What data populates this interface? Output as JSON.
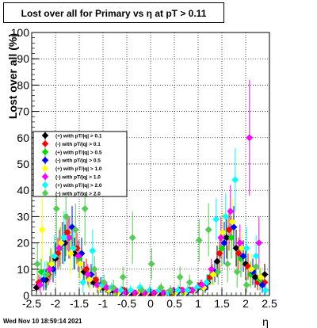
{
  "chart_data": {
    "type": "scatter",
    "title": "Lost over all for Primary vs    η at pT > 0.11",
    "xlabel": "η",
    "ylabel": "Lost over all (%)",
    "xlim": [
      -2.5,
      2.5
    ],
    "ylim": [
      0,
      100
    ],
    "x_ticks": [
      "-2.5",
      "-2",
      "-1.5",
      "-1",
      "-0.5",
      "0",
      "0.5",
      "1",
      "1.5",
      "2",
      "2.5"
    ],
    "y_ticks": [
      "0",
      "10",
      "20",
      "30",
      "40",
      "50",
      "60",
      "70",
      "80",
      "90",
      "100"
    ],
    "grid": true,
    "legend_position": "left",
    "series": [
      {
        "name": "(+) with pT/|q| > 0.1",
        "color": "#000000",
        "x": [
          -2.4,
          -2.2,
          -2.0,
          -1.8,
          -1.6,
          -1.4,
          -1.2,
          -1.0,
          -0.8,
          -0.6,
          -0.4,
          -0.2,
          0.0,
          0.2,
          0.4,
          0.6,
          0.8,
          1.0,
          1.2,
          1.4,
          1.6,
          1.8,
          2.0,
          2.2,
          2.4
        ],
        "y": [
          3,
          6,
          14,
          20,
          16,
          9,
          5,
          3,
          2,
          2,
          1,
          1,
          1,
          1,
          1,
          2,
          2,
          3,
          5,
          13,
          22,
          18,
          12,
          7,
          8
        ],
        "err": [
          2,
          4,
          6,
          7,
          6,
          4,
          2,
          2,
          1,
          1,
          1,
          1,
          1,
          1,
          1,
          1,
          1,
          2,
          3,
          6,
          8,
          7,
          6,
          4,
          4
        ]
      },
      {
        "name": "(-) with pT/|q| > 0.1",
        "color": "#ff0000",
        "x": [
          -2.35,
          -2.15,
          -1.95,
          -1.75,
          -1.55,
          -1.35,
          -1.15,
          -0.95,
          -0.75,
          -0.55,
          -0.35,
          -0.15,
          0.05,
          0.25,
          0.45,
          0.65,
          0.85,
          1.05,
          1.25,
          1.45,
          1.65,
          1.85,
          2.05,
          2.25,
          2.4
        ],
        "y": [
          5,
          8,
          16,
          24,
          18,
          10,
          6,
          3,
          2,
          2,
          1,
          1,
          1,
          1,
          1,
          2,
          2,
          4,
          7,
          16,
          25,
          16,
          11,
          5,
          5
        ],
        "err": [
          3,
          4,
          6,
          7,
          6,
          4,
          3,
          2,
          1,
          1,
          1,
          1,
          1,
          1,
          1,
          1,
          1,
          2,
          3,
          6,
          8,
          6,
          5,
          3,
          3
        ]
      },
      {
        "name": "(+) with pT/|q| > 0.5",
        "color": "#00dd00",
        "x": [
          -2.3,
          -2.1,
          -1.9,
          -1.7,
          -1.5,
          -1.3,
          -1.1,
          -0.9,
          -0.7,
          -0.5,
          -0.3,
          -0.1,
          0.1,
          0.3,
          0.5,
          0.7,
          0.9,
          1.1,
          1.3,
          1.5,
          1.7,
          1.9,
          2.1,
          2.3
        ],
        "y": [
          9,
          12,
          18,
          22,
          14,
          7,
          4,
          2,
          1,
          1,
          1,
          1,
          1,
          1,
          1,
          1,
          2,
          3,
          8,
          18,
          22,
          14,
          8,
          6
        ],
        "err": [
          5,
          6,
          8,
          8,
          7,
          4,
          3,
          2,
          1,
          1,
          1,
          1,
          1,
          1,
          1,
          1,
          1,
          2,
          4,
          7,
          8,
          7,
          5,
          4
        ]
      },
      {
        "name": "(-) with pT/|q| > 0.5",
        "color": "#0000ff",
        "x": [
          -2.25,
          -2.05,
          -1.85,
          -1.65,
          -1.45,
          -1.25,
          -1.05,
          -0.85,
          -0.65,
          -0.45,
          -0.25,
          -0.05,
          0.15,
          0.35,
          0.55,
          0.75,
          0.95,
          1.15,
          1.35,
          1.55,
          1.75,
          1.95,
          2.15,
          2.35
        ],
        "y": [
          6,
          10,
          20,
          26,
          16,
          8,
          4,
          2,
          1,
          1,
          1,
          1,
          1,
          1,
          1,
          1,
          2,
          3,
          9,
          20,
          26,
          15,
          9,
          4
        ],
        "err": [
          4,
          5,
          8,
          8,
          6,
          4,
          3,
          2,
          1,
          1,
          1,
          1,
          1,
          1,
          1,
          1,
          1,
          2,
          4,
          8,
          8,
          6,
          5,
          3
        ]
      },
      {
        "name": "(+) with pT/|q| > 1.0",
        "color": "#ffff00",
        "x": [
          -2.28,
          -2.08,
          -1.88,
          -1.68,
          -1.48,
          -1.28,
          -1.08,
          -0.88,
          -0.68,
          -0.48,
          -0.28,
          -0.08,
          0.12,
          0.32,
          0.52,
          0.72,
          0.92,
          1.12,
          1.32,
          1.52,
          1.72,
          1.92,
          2.12,
          2.32
        ],
        "y": [
          25,
          12,
          20,
          16,
          12,
          6,
          3,
          2,
          1,
          1,
          1,
          1,
          1,
          1,
          1,
          1,
          2,
          3,
          8,
          24,
          28,
          18,
          10,
          7
        ],
        "err": [
          12,
          6,
          8,
          8,
          6,
          4,
          3,
          2,
          1,
          1,
          1,
          1,
          1,
          1,
          1,
          1,
          1,
          2,
          4,
          8,
          9,
          7,
          6,
          4
        ]
      },
      {
        "name": "(-) with pT/|q| > 1.0",
        "color": "#ff00ff",
        "x": [
          -2.32,
          -2.12,
          -1.92,
          -1.72,
          -1.52,
          -1.32,
          -1.12,
          -0.92,
          -0.72,
          -0.52,
          -0.32,
          -0.12,
          0.08,
          0.28,
          0.48,
          0.68,
          0.88,
          1.08,
          1.28,
          1.48,
          1.68,
          1.88,
          2.08,
          2.28
        ],
        "y": [
          4,
          10,
          18,
          22,
          15,
          8,
          4,
          3,
          2,
          1,
          1,
          1,
          1,
          1,
          2,
          2,
          2,
          4,
          10,
          22,
          32,
          20,
          60,
          20
        ],
        "err": [
          3,
          5,
          7,
          8,
          6,
          4,
          3,
          2,
          1,
          1,
          1,
          1,
          1,
          1,
          1,
          1,
          1,
          2,
          4,
          8,
          10,
          7,
          22,
          10
        ]
      },
      {
        "name": "(+) with pT/|q| > 2.0",
        "color": "#00ffff",
        "x": [
          -2.22,
          -2.02,
          -1.82,
          -1.62,
          -1.42,
          -1.22,
          -1.02,
          -0.82,
          -0.62,
          -0.42,
          -0.22,
          -0.02,
          0.18,
          0.38,
          0.58,
          0.78,
          0.98,
          1.18,
          1.38,
          1.58,
          1.78,
          2.02,
          2.22,
          2.42
        ],
        "y": [
          8,
          15,
          22,
          18,
          5,
          17,
          4,
          3,
          2,
          2,
          3,
          2,
          2,
          1,
          2,
          2,
          3,
          5,
          29,
          30,
          44,
          18,
          15,
          2
        ],
        "err": [
          5,
          8,
          10,
          8,
          4,
          8,
          3,
          2,
          2,
          2,
          2,
          2,
          2,
          1,
          2,
          2,
          2,
          3,
          8,
          9,
          12,
          8,
          8,
          2
        ]
      },
      {
        "name": "(-) with pT/|q| > 2.0",
        "color": "#55cc55",
        "x": [
          -2.38,
          -2.18,
          -1.98,
          -1.78,
          -1.58,
          -1.38,
          -1.18,
          -0.98,
          -0.78,
          -0.58,
          -0.38,
          -0.18,
          0.02,
          0.22,
          0.42,
          0.62,
          0.82,
          1.02,
          1.22,
          1.42,
          1.62,
          1.82,
          2.02,
          2.22
        ],
        "y": [
          12,
          8,
          33,
          30,
          25,
          33,
          10,
          5,
          3,
          7,
          22,
          2,
          12,
          3,
          2,
          7,
          5,
          21,
          25,
          9,
          12,
          9,
          4,
          11
        ],
        "err": [
          8,
          5,
          18,
          15,
          10,
          14,
          5,
          3,
          3,
          4,
          10,
          2,
          6,
          2,
          2,
          4,
          3,
          8,
          10,
          5,
          7,
          6,
          3,
          5
        ]
      }
    ]
  },
  "footer": {
    "date": "Wed Nov 10 18:59:14 2021"
  }
}
